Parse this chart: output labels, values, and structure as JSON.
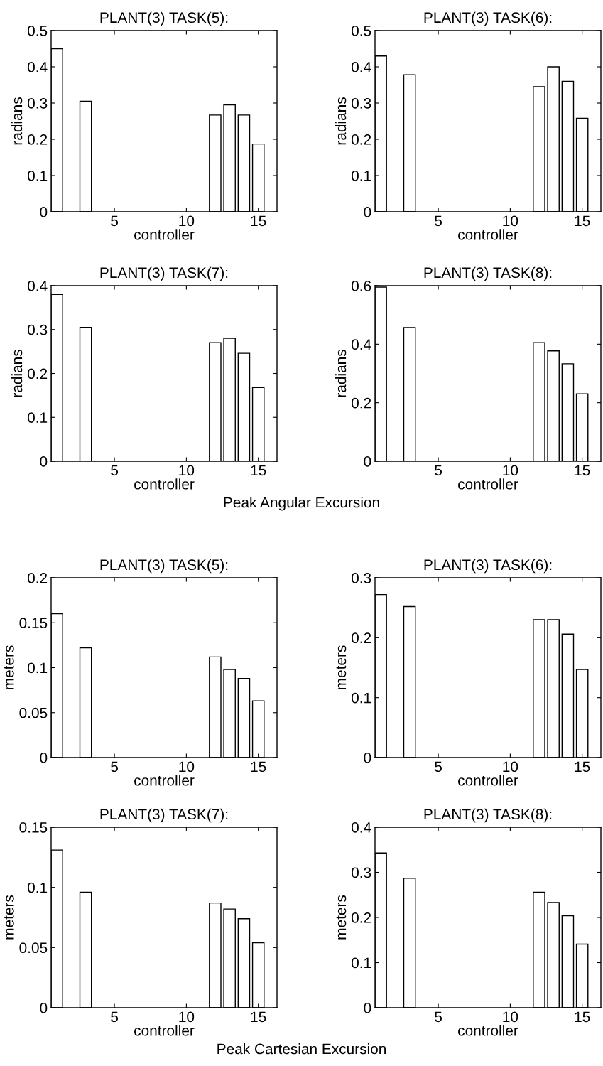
{
  "chart_data": [
    {
      "type": "bar",
      "title": "PLANT(3) TASK(5):",
      "xlabel": "controller",
      "ylabel": "radians",
      "x": [
        1,
        3,
        12,
        13,
        14,
        15
      ],
      "values": [
        0.45,
        0.305,
        0.267,
        0.295,
        0.267,
        0.187
      ],
      "color": "#ffffff",
      "xlim": [
        0.6,
        16.3
      ],
      "xticks": [
        5,
        10,
        15
      ],
      "ylim": [
        0,
        0.5
      ],
      "yticks": [
        0,
        0.1,
        0.2,
        0.3,
        0.4,
        0.5
      ]
    },
    {
      "type": "bar",
      "title": "PLANT(3) TASK(6):",
      "xlabel": "controller",
      "ylabel": "radians",
      "x": [
        1,
        3,
        12,
        13,
        14,
        15
      ],
      "values": [
        0.43,
        0.378,
        0.345,
        0.4,
        0.36,
        0.258
      ],
      "color": "#ffffff",
      "xlim": [
        0.6,
        16.3
      ],
      "xticks": [
        5,
        10,
        15
      ],
      "ylim": [
        0,
        0.5
      ],
      "yticks": [
        0,
        0.1,
        0.2,
        0.3,
        0.4,
        0.5
      ]
    },
    {
      "type": "bar",
      "title": "PLANT(3) TASK(7):",
      "xlabel": "controller",
      "ylabel": "radians",
      "x": [
        1,
        3,
        12,
        13,
        14,
        15
      ],
      "values": [
        0.38,
        0.305,
        0.27,
        0.28,
        0.246,
        0.168
      ],
      "color": "#ffffff",
      "xlim": [
        0.6,
        16.3
      ],
      "xticks": [
        5,
        10,
        15
      ],
      "ylim": [
        0,
        0.4
      ],
      "yticks": [
        0,
        0.1,
        0.2,
        0.3,
        0.4
      ],
      "annotations": [
        "Peak Angular Excursion"
      ]
    },
    {
      "type": "bar",
      "title": "PLANT(3) TASK(8):",
      "xlabel": "controller",
      "ylabel": "radians",
      "x": [
        1,
        3,
        12,
        13,
        14,
        15
      ],
      "values": [
        0.595,
        0.457,
        0.405,
        0.377,
        0.333,
        0.23
      ],
      "color": "#ffffff",
      "xlim": [
        0.6,
        16.3
      ],
      "xticks": [
        5,
        10,
        15
      ],
      "ylim": [
        0,
        0.6
      ],
      "yticks": [
        0,
        0.2,
        0.4,
        0.6
      ]
    },
    {
      "type": "bar",
      "title": "PLANT(3) TASK(5):",
      "xlabel": "controller",
      "ylabel": "meters",
      "x": [
        1,
        3,
        12,
        13,
        14,
        15
      ],
      "values": [
        0.16,
        0.122,
        0.112,
        0.098,
        0.088,
        0.063
      ],
      "color": "#ffffff",
      "xlim": [
        0.6,
        16.3
      ],
      "xticks": [
        5,
        10,
        15
      ],
      "ylim": [
        0,
        0.2
      ],
      "yticks": [
        0,
        0.05,
        0.1,
        0.15,
        0.2
      ]
    },
    {
      "type": "bar",
      "title": "PLANT(3) TASK(6):",
      "xlabel": "controller",
      "ylabel": "meters",
      "x": [
        1,
        3,
        12,
        13,
        14,
        15
      ],
      "values": [
        0.272,
        0.252,
        0.23,
        0.23,
        0.206,
        0.147
      ],
      "color": "#ffffff",
      "xlim": [
        0.6,
        16.3
      ],
      "xticks": [
        5,
        10,
        15
      ],
      "ylim": [
        0,
        0.3
      ],
      "yticks": [
        0,
        0.1,
        0.2,
        0.3
      ]
    },
    {
      "type": "bar",
      "title": "PLANT(3) TASK(7):",
      "xlabel": "controller",
      "ylabel": "meters",
      "x": [
        1,
        3,
        12,
        13,
        14,
        15
      ],
      "values": [
        0.131,
        0.096,
        0.087,
        0.082,
        0.074,
        0.054
      ],
      "color": "#ffffff",
      "xlim": [
        0.6,
        16.3
      ],
      "xticks": [
        5,
        10,
        15
      ],
      "ylim": [
        0,
        0.15
      ],
      "yticks": [
        0,
        0.05,
        0.1,
        0.15
      ],
      "annotations": [
        "Peak Cartesian Excursion"
      ]
    },
    {
      "type": "bar",
      "title": "PLANT(3) TASK(8):",
      "xlabel": "controller",
      "ylabel": "meters",
      "x": [
        1,
        3,
        12,
        13,
        14,
        15
      ],
      "values": [
        0.343,
        0.287,
        0.256,
        0.233,
        0.204,
        0.141
      ],
      "color": "#ffffff",
      "xlim": [
        0.6,
        16.3
      ],
      "xticks": [
        5,
        10,
        15
      ],
      "ylim": [
        0,
        0.4
      ],
      "yticks": [
        0,
        0.1,
        0.2,
        0.3,
        0.4
      ]
    }
  ]
}
